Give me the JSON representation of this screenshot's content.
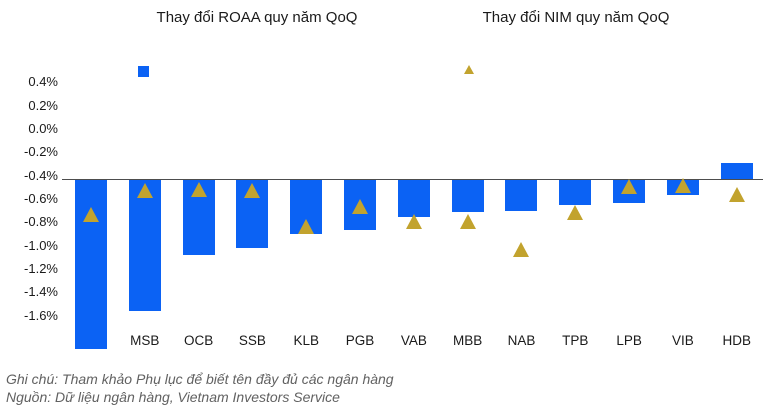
{
  "titles": {
    "roaa": "Thay đổi ROAA quy năm QoQ",
    "nim": "Thay đổi NIM quy năm QoQ"
  },
  "notes": [
    "Ghi chú: Tham khảo Phụ lục để biết tên đầy đủ các ngân hàng",
    "Nguồn: Dữ liệu ngân hàng, Vietnam Investors Service"
  ],
  "colors": {
    "bar_blue": "#0b62f4",
    "marker_gold": "#c2a32e",
    "axis_line": "#4d4d4d",
    "note_gray": "#616161",
    "text_black": "#1a1a1a"
  },
  "chart_data": {
    "type": "bar",
    "categories": [
      "",
      "MSB",
      "OCB",
      "SSB",
      "KLB",
      "PGB",
      "VAB",
      "MBB",
      "NAB",
      "TPB",
      "LPB",
      "VIB",
      "HDB"
    ],
    "series": [
      {
        "name": "Thay đổi ROAA quy năm QoQ",
        "type": "bar",
        "marker": "square",
        "color": "#0b62f4",
        "values": [
          -1.89,
          -1.57,
          -1.09,
          -1.03,
          -0.91,
          -0.87,
          -0.76,
          -0.72,
          -0.71,
          -0.66,
          -0.64,
          -0.57,
          -0.3
        ]
      },
      {
        "name": "Thay đổi NIM quy năm QoQ",
        "type": "scatter",
        "marker": "triangle",
        "color": "#c2a32e",
        "values": [
          -0.74,
          -0.53,
          -0.52,
          -0.53,
          -0.84,
          -0.67,
          -0.8,
          -0.8,
          -1.04,
          -0.72,
          -0.5,
          -0.49,
          -0.57
        ]
      }
    ],
    "unit": "%",
    "ylim": [
      -1.6,
      0.4
    ],
    "y_ticks": [
      "0.4%",
      "0.2%",
      "0.0%",
      "-0.2%",
      "-0.4%",
      "-0.6%",
      "-0.8%",
      "-1.0%",
      "-1.2%",
      "-1.4%",
      "-1.6%"
    ],
    "bar_baseline": -0.44,
    "grid": false,
    "legend_position": "top",
    "remark": "first category label is hidden behind its own bar"
  }
}
